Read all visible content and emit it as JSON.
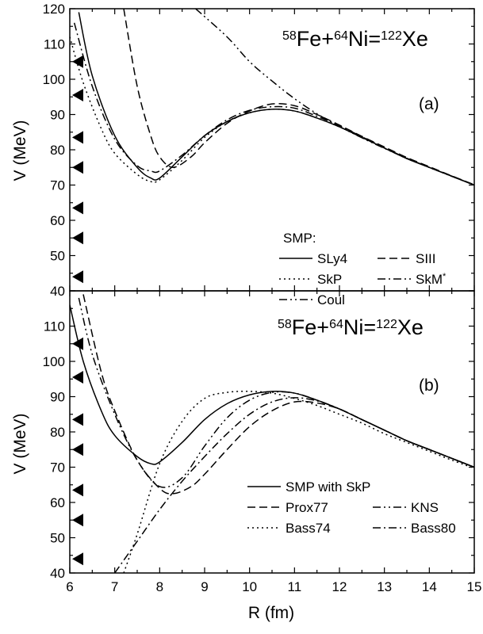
{
  "figure": {
    "xlabel": "R (fm)",
    "x_ticks": [
      "6",
      "7",
      "8",
      "9",
      "10",
      "11",
      "12",
      "13",
      "14",
      "15"
    ]
  },
  "chart_data": [
    {
      "type": "line",
      "panel": "a",
      "title_parts": {
        "a1": "58",
        "b1": "Fe+",
        "a2": "64",
        "b2": "Ni=",
        "a3": "122",
        "b3": "Xe"
      },
      "panel_label": "(a)",
      "ylabel": "V (MeV)",
      "xlim": [
        6,
        15
      ],
      "ylim": [
        40,
        120
      ],
      "y_ticks": [
        "40",
        "50",
        "60",
        "70",
        "80",
        "90",
        "100",
        "110",
        "120"
      ],
      "legend_title": "SMP:",
      "markers_y": [
        105,
        95.5,
        83.5,
        75,
        63.5,
        55,
        44
      ],
      "series": [
        {
          "name": "SLy4",
          "dash": "solid",
          "points": [
            [
              6.2,
              119
            ],
            [
              6.5,
              101
            ],
            [
              7.0,
              84
            ],
            [
              7.5,
              75
            ],
            [
              7.8,
              72
            ],
            [
              8.0,
              72
            ],
            [
              8.5,
              78
            ],
            [
              9.0,
              84
            ],
            [
              9.5,
              88
            ],
            [
              10.0,
              90.5
            ],
            [
              10.5,
              91.5
            ],
            [
              11.0,
              91
            ],
            [
              11.5,
              89
            ],
            [
              12.0,
              86.5
            ],
            [
              12.5,
              83.5
            ],
            [
              13.0,
              80.5
            ],
            [
              13.5,
              77.5
            ],
            [
              14.0,
              75
            ],
            [
              14.5,
              72.5
            ],
            [
              15.0,
              70
            ]
          ]
        },
        {
          "name": "SIII",
          "dash": "dash",
          "points": [
            [
              7.2,
              120
            ],
            [
              7.5,
              98
            ],
            [
              7.8,
              84
            ],
            [
              8.0,
              78
            ],
            [
              8.3,
              75
            ],
            [
              8.7,
              78
            ],
            [
              9.0,
              82
            ],
            [
              9.5,
              87.5
            ],
            [
              10.0,
              91
            ],
            [
              10.5,
              93
            ],
            [
              11.0,
              92.5
            ],
            [
              11.5,
              90
            ],
            [
              12.0,
              87
            ],
            [
              12.5,
              83.8
            ],
            [
              13.0,
              80.8
            ],
            [
              13.5,
              77.8
            ],
            [
              14.0,
              75.2
            ],
            [
              14.5,
              72.6
            ],
            [
              15.0,
              70.1
            ]
          ]
        },
        {
          "name": "SkP",
          "dash": "dot",
          "points": [
            [
              6.0,
              112
            ],
            [
              6.3,
              99
            ],
            [
              6.7,
              86
            ],
            [
              7.0,
              79
            ],
            [
              7.5,
              73
            ],
            [
              7.8,
              71
            ],
            [
              8.0,
              71.5
            ],
            [
              8.5,
              77
            ],
            [
              9.0,
              83.5
            ],
            [
              9.5,
              88
            ],
            [
              10.0,
              90.5
            ],
            [
              10.5,
              91.5
            ],
            [
              11.0,
              91
            ],
            [
              11.5,
              89
            ],
            [
              12.0,
              86.5
            ],
            [
              12.5,
              83.5
            ],
            [
              13.0,
              80.5
            ],
            [
              13.5,
              77.5
            ],
            [
              14.0,
              75
            ],
            [
              14.5,
              72.5
            ],
            [
              15.0,
              70
            ]
          ]
        },
        {
          "name": "SkM",
          "superscript": "*",
          "dash": "dashdot",
          "points": [
            [
              6.1,
              116
            ],
            [
              6.5,
              98
            ],
            [
              7.0,
              83
            ],
            [
              7.5,
              75.5
            ],
            [
              7.8,
              74
            ],
            [
              8.0,
              74
            ],
            [
              8.5,
              78.5
            ],
            [
              9.0,
              84
            ],
            [
              9.5,
              88.5
            ],
            [
              10.0,
              91.2
            ],
            [
              10.5,
              92.2
            ],
            [
              11.0,
              91.8
            ],
            [
              11.5,
              89.5
            ],
            [
              12.0,
              86.8
            ],
            [
              12.5,
              83.7
            ],
            [
              13.0,
              80.6
            ],
            [
              13.5,
              77.6
            ],
            [
              14.0,
              75
            ],
            [
              14.5,
              72.5
            ],
            [
              15.0,
              70
            ]
          ]
        },
        {
          "name": "Coul",
          "dash": "dashdotdot",
          "points": [
            [
              8.8,
              120
            ],
            [
              9.5,
              112
            ],
            [
              10.0,
              105
            ],
            [
              10.5,
              99.5
            ],
            [
              11.0,
              94.5
            ],
            [
              11.5,
              90.2
            ],
            [
              12.0,
              86.6
            ],
            [
              12.5,
              83.4
            ],
            [
              13.0,
              80.4
            ],
            [
              13.5,
              77.6
            ],
            [
              14.0,
              75
            ],
            [
              14.5,
              72.5
            ],
            [
              15.0,
              70
            ]
          ]
        }
      ]
    },
    {
      "type": "line",
      "panel": "b",
      "title_parts": {
        "a1": "58",
        "b1": "Fe+",
        "a2": "64",
        "b2": "Ni=",
        "a3": "122",
        "b3": "Xe"
      },
      "panel_label": "(b)",
      "ylabel": "V (MeV)",
      "xlim": [
        6,
        15
      ],
      "ylim": [
        40,
        120
      ],
      "y_ticks": [
        "40",
        "50",
        "60",
        "70",
        "80",
        "90",
        "100",
        "110"
      ],
      "markers_y": [
        105,
        95.5,
        83.5,
        75,
        63.5,
        55,
        44
      ],
      "series": [
        {
          "name": "SMP with SkP",
          "dash": "solid",
          "points": [
            [
              6.0,
              116
            ],
            [
              6.3,
              100
            ],
            [
              6.7,
              86
            ],
            [
              7.0,
              79
            ],
            [
              7.5,
              73
            ],
            [
              7.8,
              71
            ],
            [
              8.0,
              71.5
            ],
            [
              8.5,
              77
            ],
            [
              9.0,
              83.5
            ],
            [
              9.5,
              88
            ],
            [
              10.0,
              90.5
            ],
            [
              10.5,
              91.5
            ],
            [
              11.0,
              91
            ],
            [
              11.5,
              89
            ],
            [
              12.0,
              86.5
            ],
            [
              12.5,
              83.5
            ],
            [
              13.0,
              80.5
            ],
            [
              13.5,
              77.5
            ],
            [
              14.0,
              75
            ],
            [
              14.5,
              72.5
            ],
            [
              15.0,
              70
            ]
          ]
        },
        {
          "name": "Prox77",
          "dash": "dash",
          "points": [
            [
              6.3,
              119
            ],
            [
              6.7,
              97
            ],
            [
              7.0,
              86
            ],
            [
              7.5,
              72
            ],
            [
              8.0,
              64
            ],
            [
              8.3,
              62.5
            ],
            [
              8.7,
              64.5
            ],
            [
              9.0,
              68
            ],
            [
              9.5,
              75
            ],
            [
              10.0,
              81.5
            ],
            [
              10.5,
              86
            ],
            [
              11.0,
              88.5
            ],
            [
              11.5,
              88.2
            ],
            [
              12.0,
              86.5
            ],
            [
              12.5,
              83.5
            ],
            [
              13.0,
              80.5
            ],
            [
              13.5,
              77.5
            ],
            [
              14.0,
              75
            ],
            [
              14.5,
              72.5
            ],
            [
              15.0,
              70
            ]
          ]
        },
        {
          "name": "KNS",
          "dash": "dashdotdot",
          "points": [
            [
              6.2,
              118
            ],
            [
              6.5,
              102
            ],
            [
              7.0,
              85
            ],
            [
              7.5,
              72
            ],
            [
              8.0,
              64.5
            ],
            [
              8.5,
              67
            ],
            [
              9.0,
              76
            ],
            [
              9.5,
              84
            ],
            [
              10.0,
              89
            ],
            [
              10.5,
              91.2
            ],
            [
              11.0,
              91
            ],
            [
              11.5,
              89
            ],
            [
              12.0,
              86.5
            ],
            [
              12.5,
              83.5
            ],
            [
              13.0,
              80.5
            ],
            [
              13.5,
              77.5
            ],
            [
              14.0,
              75
            ],
            [
              14.5,
              72.5
            ],
            [
              15.0,
              70
            ]
          ]
        },
        {
          "name": "Bass74",
          "dash": "dot",
          "points": [
            [
              7.2,
              40
            ],
            [
              7.5,
              51
            ],
            [
              8.0,
              71
            ],
            [
              8.5,
              83
            ],
            [
              9.0,
              89.5
            ],
            [
              9.5,
              91.2
            ],
            [
              10.0,
              91.5
            ],
            [
              10.5,
              91
            ],
            [
              11.0,
              89.5
            ],
            [
              11.5,
              87.5
            ],
            [
              12.0,
              85
            ],
            [
              12.5,
              82.5
            ],
            [
              13.0,
              79.5
            ],
            [
              13.5,
              77
            ],
            [
              14.0,
              74.5
            ],
            [
              14.5,
              72
            ],
            [
              15.0,
              69.7
            ]
          ]
        },
        {
          "name": "Bass80",
          "dash": "dashdot",
          "points": [
            [
              7.0,
              40
            ],
            [
              7.5,
              49
            ],
            [
              8.0,
              58
            ],
            [
              8.5,
              66
            ],
            [
              9.0,
              73
            ],
            [
              9.5,
              79.5
            ],
            [
              10.0,
              85
            ],
            [
              10.5,
              88.5
            ],
            [
              11.0,
              89.7
            ],
            [
              11.5,
              88.8
            ],
            [
              12.0,
              86.5
            ],
            [
              12.5,
              83.5
            ],
            [
              13.0,
              80.5
            ],
            [
              13.5,
              77.5
            ],
            [
              14.0,
              75
            ],
            [
              14.5,
              72.5
            ],
            [
              15.0,
              70
            ]
          ]
        }
      ]
    }
  ]
}
